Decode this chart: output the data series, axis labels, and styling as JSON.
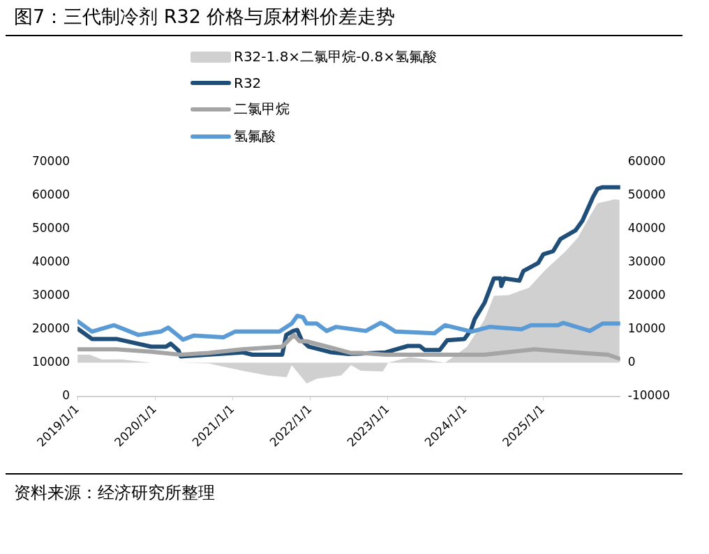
{
  "chart_data": {
    "type": "line",
    "title": "图7：三代制冷剂 R32 价格与原材料价差走势",
    "annotations": [
      "资料来源：经济研究所整理"
    ],
    "legend": "top",
    "grid": false,
    "xlim": [
      "2019-01-01",
      "2025-12-31"
    ],
    "xticks": [
      {
        "value": "2019-01-01",
        "label": "2019/1/1"
      },
      {
        "value": "2020-01-01",
        "label": "2020/1/1"
      },
      {
        "value": "2021-01-01",
        "label": "2021/1/1"
      },
      {
        "value": "2022-01-01",
        "label": "2022/1/1"
      },
      {
        "value": "2023-01-01",
        "label": "2023/1/1"
      },
      {
        "value": "2024-01-01",
        "label": "2024/1/1"
      },
      {
        "value": "2025-01-01",
        "label": "2025/1/1"
      }
    ],
    "ylim": [
      0,
      70000
    ],
    "yticks": [
      0,
      10000,
      20000,
      30000,
      40000,
      50000,
      60000,
      70000
    ],
    "y2lim": [
      -10000,
      60000
    ],
    "y2ticks": [
      -10000,
      0,
      10000,
      20000,
      30000,
      40000,
      50000,
      60000
    ],
    "series": [
      {
        "name": "R32-1.8×二氯甲烷-0.8×氢氟酸",
        "type": "area",
        "axis": "y2",
        "color": "#d0d0d0",
        "x": [
          "2019-01-01",
          "2019-02-28",
          "2019-04-24",
          "2019-07-27",
          "2019-12-14",
          "2020-05-01",
          "2020-09-09",
          "2021-02-15",
          "2021-06-13",
          "2021-09-12",
          "2021-10-06",
          "2021-12-15",
          "2022-02-01",
          "2022-05-27",
          "2022-07-12",
          "2022-08-27",
          "2022-12-09",
          "2023-01-03",
          "2023-04-16",
          "2023-09-28",
          "2024-01-10",
          "2024-04-01",
          "2024-05-15",
          "2024-07-24",
          "2024-09-12",
          "2024-10-27",
          "2025-01-15",
          "2025-04-18",
          "2025-06-15",
          "2025-08-10",
          "2025-09-15",
          "2025-12-06",
          "2025-12-28"
        ],
        "values": [
          2400,
          2400,
          1000,
          1000,
          0,
          0,
          -200,
          -2400,
          -3800,
          -4300,
          -700,
          -6200,
          -4800,
          -3800,
          -700,
          -2400,
          -2600,
          0,
          1700,
          0,
          4800,
          12900,
          20000,
          20200,
          21400,
          22400,
          27900,
          33300,
          37400,
          43800,
          47600,
          48800,
          48600
        ]
      },
      {
        "name": "R32",
        "type": "line",
        "color": "#1f4e79",
        "x": [
          "2019-01-01",
          "2019-03-10",
          "2019-07-03",
          "2019-12-14",
          "2020-02-22",
          "2020-03-15",
          "2020-04-21",
          "2020-05-01",
          "2021-02-15",
          "2021-04-04",
          "2021-08-22",
          "2021-09-10",
          "2021-10-13",
          "2021-11-01",
          "2021-11-22",
          "2021-12-25",
          "2022-04-10",
          "2022-07-01",
          "2022-12-22",
          "2023-04-06",
          "2023-06-01",
          "2023-06-25",
          "2023-09-03",
          "2023-10-08",
          "2023-12-28",
          "2024-01-28",
          "2024-02-15",
          "2024-04-01",
          "2024-05-15",
          "2024-06-15",
          "2024-06-19",
          "2024-07-03",
          "2024-09-12",
          "2024-10-01",
          "2024-12-10",
          "2025-01-03",
          "2025-02-18",
          "2025-03-24",
          "2025-06-03",
          "2025-07-06",
          "2025-08-25",
          "2025-09-15",
          "2025-10-09",
          "2025-12-28"
        ],
        "values": [
          20200,
          17100,
          17100,
          14800,
          14800,
          15700,
          13600,
          11900,
          13100,
          12400,
          12400,
          18300,
          19500,
          19800,
          16700,
          14800,
          13100,
          12600,
          13100,
          15000,
          15000,
          13800,
          13800,
          16700,
          17100,
          19800,
          23100,
          27900,
          35200,
          35200,
          32900,
          35200,
          34500,
          37400,
          39800,
          42400,
          43300,
          46900,
          49500,
          52400,
          59500,
          61900,
          62400,
          62400
        ]
      },
      {
        "name": "二氯甲烷",
        "type": "line",
        "axis": "y2",
        "color": "#a5a5a5",
        "x": [
          "2019-01-01",
          "2019-07-03",
          "2019-12-14",
          "2020-05-01",
          "2020-09-09",
          "2021-02-15",
          "2021-08-22",
          "2021-10-16",
          "2021-11-12",
          "2021-12-15",
          "2022-04-10",
          "2022-07-12",
          "2022-08-27",
          "2022-12-22",
          "2023-12-06",
          "2024-04-01",
          "2024-11-19",
          "2025-07-06",
          "2025-11-03",
          "2025-12-28"
        ],
        "values": [
          4000,
          4000,
          3300,
          2400,
          2900,
          4000,
          4800,
          8300,
          6400,
          6400,
          4500,
          2900,
          2900,
          2400,
          2400,
          2400,
          4000,
          2900,
          2400,
          1200
        ]
      },
      {
        "name": "氢氟酸",
        "type": "line",
        "axis": "y2",
        "color": "#5b9bd5",
        "x": [
          "2019-01-01",
          "2019-03-10",
          "2019-06-22",
          "2019-10-15",
          "2020-01-28",
          "2020-03-03",
          "2020-05-12",
          "2020-07-01",
          "2020-11-18",
          "2021-01-12",
          "2021-08-09",
          "2021-10-06",
          "2021-11-01",
          "2021-11-28",
          "2021-12-15",
          "2022-02-01",
          "2022-03-19",
          "2022-05-03",
          "2022-09-20",
          "2022-11-28",
          "2022-12-22",
          "2023-02-06",
          "2023-08-09",
          "2023-09-28",
          "2024-01-31",
          "2024-04-24",
          "2024-09-21",
          "2024-11-06",
          "2025-03-13",
          "2025-04-07",
          "2025-08-10",
          "2025-10-09",
          "2025-12-28"
        ],
        "values": [
          12400,
          9300,
          11200,
          8300,
          9300,
          10500,
          6900,
          8100,
          7600,
          9300,
          9300,
          11700,
          14000,
          13600,
          11700,
          11700,
          9500,
          10700,
          9500,
          11900,
          11200,
          9300,
          8800,
          11200,
          9300,
          10700,
          10000,
          11200,
          11200,
          11900,
          9500,
          11700,
          11700
        ]
      }
    ]
  }
}
